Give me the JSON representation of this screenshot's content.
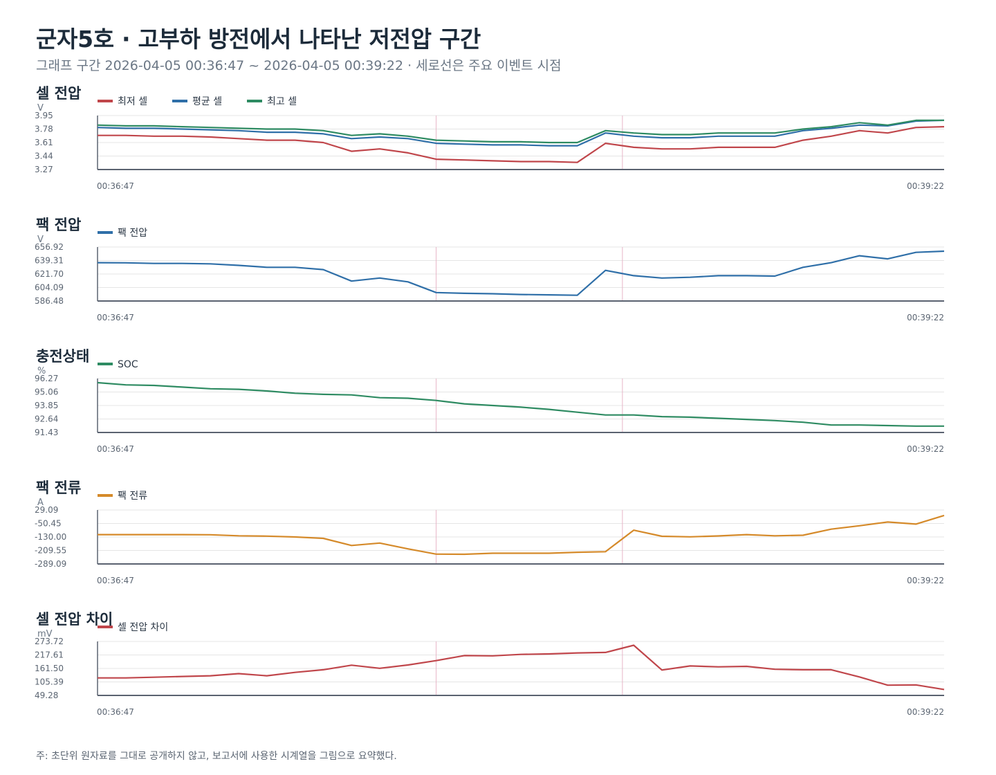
{
  "title": "군자5호 · 고부하 방전에서 나타난 저전압 구간",
  "subtitle": "그래프 구간 2026-04-05 00:36:47 ~ 2026-04-05 00:39:22 · 세로선은 주요 이벤트 시점",
  "footnote": "주: 초단위 원자료를 그대로 공개하지 않고, 보고서에 사용한 시계열을 그림으로 요약했다.",
  "colors": {
    "red": "#c0464b",
    "blue": "#2f6fa8",
    "green": "#2e8b62",
    "orange": "#d58a2a",
    "event_line": "#e7b5c7",
    "grid": "#e5e5e5",
    "axis": "#5a6270"
  },
  "chart_data": [
    {
      "type": "line",
      "title": "셀 전압",
      "ylabel": "V",
      "ylim": [
        3.27,
        3.95
      ],
      "y_ticks": [
        "3.95",
        "3.78",
        "3.61",
        "3.44",
        "3.27"
      ],
      "x_labels": [
        "00:36:47",
        "00:39:22"
      ],
      "events": [
        0.4,
        0.62
      ],
      "series": [
        {
          "name": "최저 셀",
          "color": "red",
          "values": [
            3.7,
            3.7,
            3.69,
            3.69,
            3.68,
            3.66,
            3.64,
            3.64,
            3.61,
            3.5,
            3.53,
            3.48,
            3.4,
            3.39,
            3.38,
            3.37,
            3.37,
            3.36,
            3.6,
            3.55,
            3.53,
            3.53,
            3.55,
            3.55,
            3.55,
            3.64,
            3.69,
            3.76,
            3.73,
            3.8,
            3.81
          ]
        },
        {
          "name": "평균 셀",
          "color": "blue",
          "values": [
            3.8,
            3.79,
            3.79,
            3.78,
            3.77,
            3.76,
            3.74,
            3.74,
            3.72,
            3.66,
            3.68,
            3.66,
            3.6,
            3.59,
            3.58,
            3.58,
            3.57,
            3.57,
            3.73,
            3.69,
            3.67,
            3.67,
            3.69,
            3.69,
            3.69,
            3.76,
            3.79,
            3.83,
            3.82,
            3.88,
            3.89
          ]
        },
        {
          "name": "최고 셀",
          "color": "green",
          "values": [
            3.83,
            3.82,
            3.82,
            3.81,
            3.8,
            3.79,
            3.78,
            3.78,
            3.76,
            3.7,
            3.72,
            3.69,
            3.64,
            3.63,
            3.62,
            3.62,
            3.61,
            3.61,
            3.76,
            3.73,
            3.71,
            3.71,
            3.73,
            3.73,
            3.73,
            3.78,
            3.81,
            3.86,
            3.83,
            3.89,
            3.89
          ]
        }
      ]
    },
    {
      "type": "line",
      "title": "팩 전압",
      "ylabel": "V",
      "ylim": [
        586.48,
        656.92
      ],
      "y_ticks": [
        "656.92",
        "639.31",
        "621.70",
        "604.09",
        "586.48"
      ],
      "x_labels": [
        "00:36:47",
        "00:39:22"
      ],
      "events": [
        0.4,
        0.62
      ],
      "series": [
        {
          "name": "팩 전압",
          "color": "blue",
          "values": [
            636.5,
            636.3,
            635.5,
            635.5,
            635.0,
            633.0,
            630.5,
            630.5,
            627.5,
            612.5,
            616.5,
            611.5,
            597.5,
            596.5,
            596.0,
            595.0,
            594.5,
            594.0,
            626.5,
            619.5,
            616.5,
            617.5,
            619.5,
            619.5,
            619.0,
            630.5,
            636.5,
            645.5,
            641.5,
            650.0,
            651.5
          ]
        }
      ]
    },
    {
      "type": "line",
      "title": "충전상태",
      "ylabel": "%",
      "ylim": [
        91.43,
        96.27
      ],
      "y_ticks": [
        "96.27",
        "95.06",
        "93.85",
        "92.64",
        "91.43"
      ],
      "x_labels": [
        "00:36:47",
        "00:39:22"
      ],
      "events": [
        0.4,
        0.62
      ],
      "series": [
        {
          "name": "SOC",
          "color": "green",
          "values": [
            95.9,
            95.7,
            95.65,
            95.5,
            95.35,
            95.3,
            95.15,
            94.95,
            94.85,
            94.8,
            94.55,
            94.5,
            94.3,
            94.0,
            93.85,
            93.7,
            93.5,
            93.25,
            93.0,
            93.0,
            92.85,
            92.8,
            92.7,
            92.6,
            92.5,
            92.35,
            92.1,
            92.1,
            92.05,
            92.0,
            92.0
          ]
        }
      ]
    },
    {
      "type": "line",
      "title": "팩 전류",
      "ylabel": "A",
      "ylim": [
        -289.09,
        29.09
      ],
      "y_ticks": [
        "29.09",
        "-50.45",
        "-130.00",
        "-209.55",
        "-289.09"
      ],
      "x_labels": [
        "00:36:47",
        "00:39:22"
      ],
      "events": [
        0.4,
        0.62
      ],
      "series": [
        {
          "name": "팩 전류",
          "color": "orange",
          "values": [
            -116,
            -116,
            -116,
            -116,
            -117,
            -123,
            -125,
            -130,
            -138,
            -180,
            -166,
            -200,
            -231,
            -232,
            -226,
            -226,
            -226,
            -220,
            -217,
            -90,
            -126,
            -129,
            -124,
            -116,
            -123,
            -120,
            -84,
            -64,
            -42,
            -54,
            -3
          ]
        }
      ]
    },
    {
      "type": "line",
      "title": "셀 전압 차이",
      "ylabel": "mV",
      "ylim": [
        49.28,
        273.72
      ],
      "y_ticks": [
        "273.72",
        "217.61",
        "161.50",
        "105.39",
        "49.28"
      ],
      "x_labels": [
        "00:36:47",
        "00:39:22"
      ],
      "events": [
        0.4,
        0.62
      ],
      "series": [
        {
          "name": "셀 전압 차이",
          "color": "red",
          "values": [
            122,
            122,
            125,
            128,
            131,
            140,
            131,
            145,
            156,
            175,
            162,
            176,
            194,
            215,
            214,
            220,
            222,
            226,
            228,
            258,
            155,
            172,
            168,
            170,
            158,
            156,
            156,
            126,
            92,
            93,
            74
          ]
        }
      ]
    }
  ]
}
